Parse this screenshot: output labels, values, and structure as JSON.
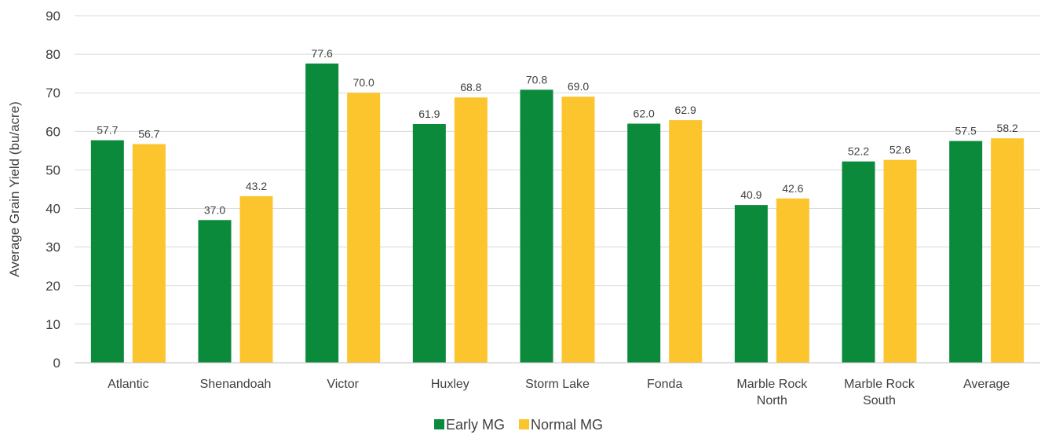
{
  "chart_data": {
    "type": "bar",
    "title": "",
    "xlabel": "",
    "ylabel": "Average Grain Yield (bu/acre)",
    "ylim": [
      0,
      90
    ],
    "yticks": [
      0,
      10,
      20,
      30,
      40,
      50,
      60,
      70,
      80,
      90
    ],
    "grid": true,
    "legend_position": "bottom",
    "categories": [
      [
        "Atlantic"
      ],
      [
        "Shenandoah"
      ],
      [
        "Victor"
      ],
      [
        "Huxley"
      ],
      [
        "Storm Lake"
      ],
      [
        "Fonda"
      ],
      [
        "Marble Rock",
        "North"
      ],
      [
        "Marble Rock",
        "South"
      ],
      [
        "Average"
      ]
    ],
    "series": [
      {
        "name": "Early MG",
        "color": "#0a8a3a",
        "values": [
          57.7,
          37.0,
          77.6,
          61.9,
          70.8,
          62.0,
          40.9,
          52.2,
          57.5
        ]
      },
      {
        "name": "Normal MG",
        "color": "#fcc42d",
        "values": [
          56.7,
          43.2,
          70.0,
          68.8,
          69.0,
          62.9,
          42.6,
          52.6,
          58.2
        ]
      }
    ]
  }
}
